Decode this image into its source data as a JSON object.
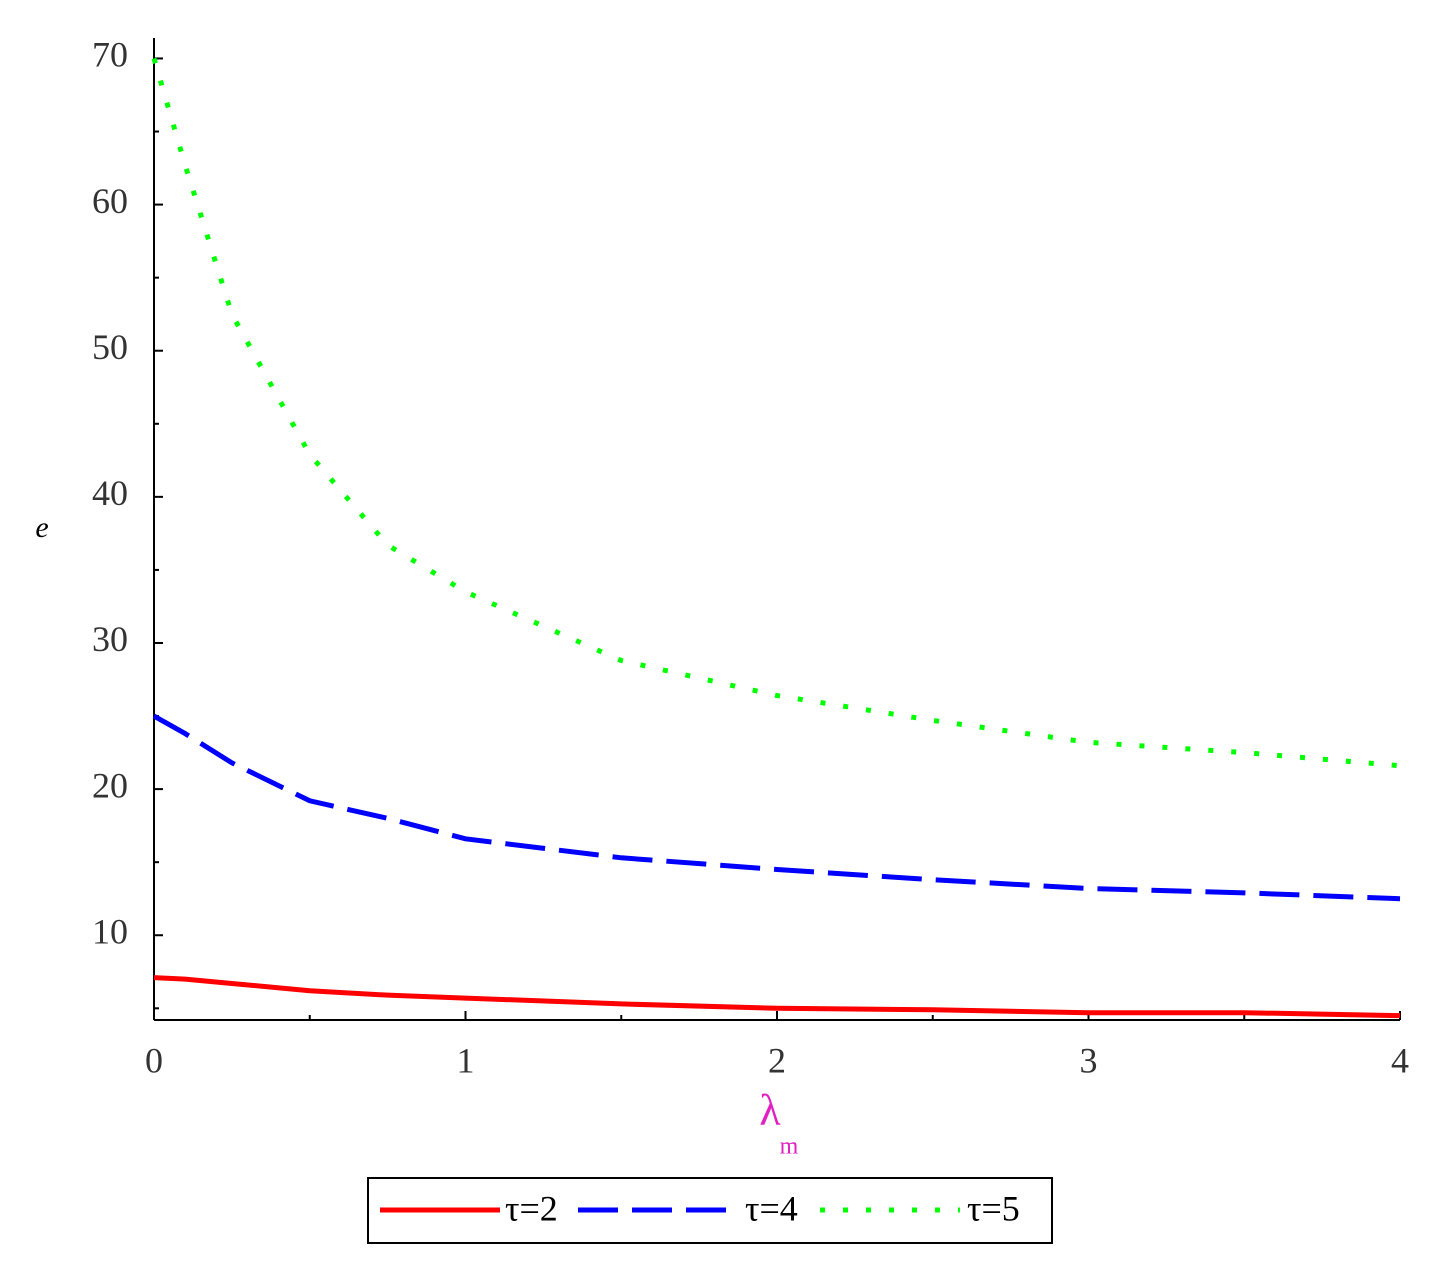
{
  "chart_data": {
    "type": "line",
    "y_label": "e",
    "x_label": "λ",
    "x_label_subscript": "m",
    "x": [
      0,
      0.1,
      0.25,
      0.5,
      0.75,
      1,
      1.5,
      2,
      2.5,
      3,
      3.5,
      4
    ],
    "series": [
      {
        "name": "τ=2",
        "color": "#ff0000",
        "style": "solid",
        "values": [
          7.1,
          7.0,
          6.7,
          6.2,
          5.9,
          5.7,
          5.3,
          5.0,
          4.9,
          4.7,
          4.7,
          4.5
        ]
      },
      {
        "name": "τ=4",
        "color": "#0000ff",
        "style": "dash",
        "values": [
          25,
          23.8,
          21.8,
          19.2,
          18.0,
          16.6,
          15.3,
          14.5,
          13.8,
          13.2,
          12.9,
          12.5
        ]
      },
      {
        "name": "τ=5",
        "color": "#00ff00",
        "style": "dot",
        "values": [
          70,
          62.7,
          52.5,
          42.9,
          36.7,
          33.5,
          28.8,
          26.4,
          24.7,
          23.2,
          22.5,
          21.6
        ]
      }
    ],
    "xlim": [
      0,
      4
    ],
    "ylim": [
      4.2,
      71.4
    ],
    "xticks": [
      0,
      1,
      2,
      3,
      4
    ],
    "yticks": [
      10,
      20,
      30,
      40,
      50,
      60,
      70
    ],
    "xminorticks": [
      0.5,
      1.5,
      2.5,
      3.5
    ],
    "yminorticks": [
      5,
      15,
      25,
      35,
      45,
      55,
      65
    ],
    "legend": "bottom",
    "grid": false
  }
}
